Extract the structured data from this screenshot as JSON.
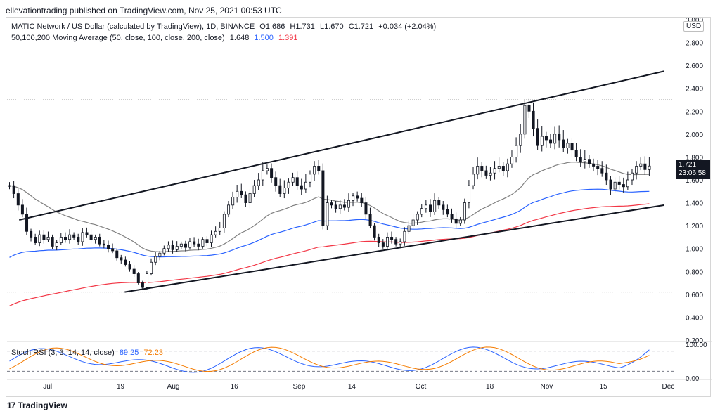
{
  "header": {
    "publisher_line": "ellevationtrading published on TradingView.com, Nov 25, 2021 00:53 UTC"
  },
  "legend": {
    "symbol_line": "MATIC Network / US Dollar (calculated by TradingView), 1D, BINANCE",
    "o": "O1.686",
    "h": "H1.731",
    "l": "L1.670",
    "c": "C1.721",
    "chg": "+0.034 (+2.04%)",
    "ma_line": "50,100,200 Moving Average (50, close, 100, close, 200, close)",
    "ma50": "1.648",
    "ma100": "1.500",
    "ma200": "1.391",
    "stoch_line": "Stoch RSI (3, 3, 14, 14, close)",
    "stoch_k": "89.25",
    "stoch_d": "72.23"
  },
  "axis": {
    "currency": "USD",
    "price_tag": "1.721",
    "countdown": "23:06:58"
  },
  "footer": {
    "brand": "TradingView",
    "logo": "17"
  },
  "colors": {
    "up": "#131722",
    "down": "#131722",
    "ma50": "#808080",
    "ma100": "#2962ff",
    "ma200": "#f23645",
    "k": "#2962ff",
    "d": "#f57c00"
  },
  "chart_data": {
    "type": "candlestick",
    "interval": "1D",
    "ylim": [
      0.2,
      3.0
    ],
    "yticks": [
      "3.000",
      "2.800",
      "2.600",
      "2.400",
      "2.200",
      "2.000",
      "1.800",
      "1.600",
      "1.400",
      "1.200",
      "1.000",
      "0.800",
      "0.600",
      "0.400",
      "0.200"
    ],
    "xticks": [
      "Jul",
      "19",
      "Aug",
      "16",
      "Sep",
      "14",
      "Oct",
      "18",
      "Nov",
      "15",
      "Dec"
    ],
    "xtick_dates": [
      "2021-07-01",
      "2021-07-19",
      "2021-08-01",
      "2021-08-16",
      "2021-09-01",
      "2021-09-14",
      "2021-10-01",
      "2021-10-18",
      "2021-11-01",
      "2021-11-15",
      "2021-12-01"
    ],
    "date_range": [
      "2021-06-21",
      "2021-12-03"
    ],
    "close": [
      1.55,
      1.48,
      1.38,
      1.3,
      1.15,
      1.1,
      1.05,
      1.12,
      1.08,
      1.1,
      1.02,
      1.05,
      1.1,
      1.08,
      1.12,
      1.1,
      1.06,
      1.14,
      1.12,
      1.08,
      1.1,
      1.04,
      1.03,
      1.0,
      0.98,
      0.92,
      0.9,
      0.86,
      0.82,
      0.78,
      0.7,
      0.66,
      0.78,
      0.88,
      0.93,
      0.96,
      1.0,
      1.03,
      0.99,
      1.02,
      1.04,
      1.01,
      1.06,
      1.04,
      1.02,
      1.08,
      1.05,
      1.12,
      1.15,
      1.18,
      1.3,
      1.38,
      1.45,
      1.5,
      1.47,
      1.4,
      1.48,
      1.55,
      1.6,
      1.68,
      1.7,
      1.62,
      1.55,
      1.48,
      1.53,
      1.58,
      1.62,
      1.55,
      1.52,
      1.58,
      1.65,
      1.72,
      1.68,
      1.2,
      1.4,
      1.38,
      1.35,
      1.38,
      1.36,
      1.42,
      1.46,
      1.44,
      1.4,
      1.3,
      1.2,
      1.1,
      1.05,
      1.02,
      1.1,
      1.08,
      1.04,
      1.06,
      1.15,
      1.2,
      1.25,
      1.3,
      1.35,
      1.38,
      1.32,
      1.42,
      1.38,
      1.34,
      1.3,
      1.26,
      1.22,
      1.25,
      1.4,
      1.55,
      1.65,
      1.72,
      1.68,
      1.64,
      1.66,
      1.7,
      1.72,
      1.68,
      1.74,
      1.8,
      1.9,
      2.0,
      2.25,
      2.2,
      2.05,
      1.9,
      1.98,
      1.95,
      1.92,
      2.0,
      1.95,
      1.88,
      1.92,
      1.86,
      1.8,
      1.76,
      1.78,
      1.74,
      1.72,
      1.7,
      1.66,
      1.6,
      1.52,
      1.58,
      1.56,
      1.54,
      1.6,
      1.66,
      1.72,
      1.74,
      1.69,
      1.721
    ],
    "highs_marked": [
      {
        "date": "2021-10-27",
        "value": 2.3
      },
      {
        "date": "2021-09-06",
        "value": 1.87
      }
    ],
    "lows_marked": [
      {
        "date": "2021-07-20",
        "value": 0.62
      }
    ],
    "ma50_end": 1.648,
    "ma100_end": 1.5,
    "ma200_end": 1.391,
    "trendline_upper": [
      {
        "date": "2021-06-24",
        "value": 1.25
      },
      {
        "date": "2021-11-30",
        "value": 2.55
      }
    ],
    "trendline_lower": [
      {
        "date": "2021-07-20",
        "value": 0.62
      },
      {
        "date": "2021-11-30",
        "value": 1.38
      }
    ],
    "dotted_levels": [
      2.3,
      0.62
    ],
    "stoch": {
      "ylim": [
        0,
        100
      ],
      "yticks": [
        "100.00",
        "0.00"
      ],
      "levels": [
        80,
        20
      ],
      "k_end": 89.25,
      "d_end": 72.23
    }
  }
}
